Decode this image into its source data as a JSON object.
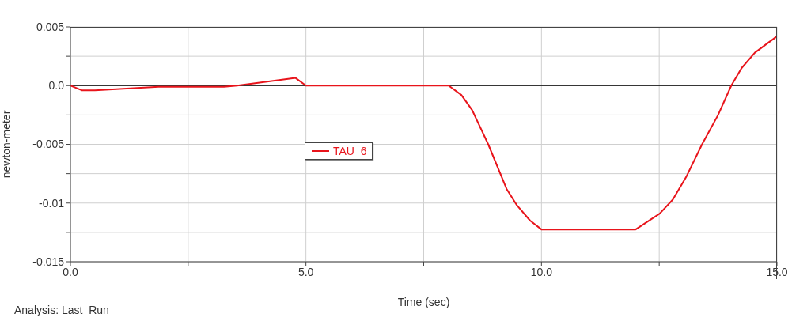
{
  "chart_data": {
    "type": "line",
    "xlabel": "Time (sec)",
    "ylabel": "newton-meter",
    "annotations": [
      "Analysis:  Last_Run"
    ],
    "xlim": [
      0,
      15
    ],
    "xticks": [
      {
        "value": 0,
        "label": "0.0"
      },
      {
        "value": 2.5,
        "label": null
      },
      {
        "value": 5,
        "label": "5.0"
      },
      {
        "value": 7.5,
        "label": null
      },
      {
        "value": 10,
        "label": "10.0"
      },
      {
        "value": 12.5,
        "label": null
      },
      {
        "value": 15,
        "label": "15.0"
      }
    ],
    "ylim": [
      -0.015,
      0.005
    ],
    "yticks": [
      {
        "value": -0.015,
        "label": "-0.015"
      },
      {
        "value": -0.0125,
        "label": null
      },
      {
        "value": -0.01,
        "label": "-0.01"
      },
      {
        "value": -0.0075,
        "label": null
      },
      {
        "value": -0.005,
        "label": "-0.005"
      },
      {
        "value": -0.0025,
        "label": null
      },
      {
        "value": 0,
        "label": "0.0"
      },
      {
        "value": 0.0025,
        "label": null
      },
      {
        "value": 0.005,
        "label": "0.005"
      }
    ],
    "grid": true,
    "legend": "center",
    "marker": "none",
    "line_style": "solid",
    "ref_lines": [
      {
        "axis": "y",
        "value": 0,
        "color": "#000000"
      }
    ],
    "series": [
      {
        "name": "TAU_6",
        "color": "#e8141b",
        "x": [
          0,
          0.24,
          0.52,
          1.87,
          3.26,
          3.54,
          4.78,
          5.0,
          8.03,
          8.3,
          8.53,
          8.87,
          9.26,
          9.48,
          9.76,
          10.0,
          12.0,
          12.51,
          12.79,
          13.07,
          13.41,
          13.75,
          14.03,
          14.25,
          14.53,
          15.0
        ],
        "values": [
          0,
          -0.0004,
          -0.0004,
          -0.0001,
          -0.0001,
          0,
          0.00065,
          0,
          0,
          -0.0008,
          -0.0021,
          -0.005,
          -0.0088,
          -0.0102,
          -0.0115,
          -0.01225,
          -0.01225,
          -0.0109,
          -0.0097,
          -0.0078,
          -0.005,
          -0.0025,
          0,
          0.0015,
          0.0028,
          0.0042
        ]
      }
    ]
  }
}
